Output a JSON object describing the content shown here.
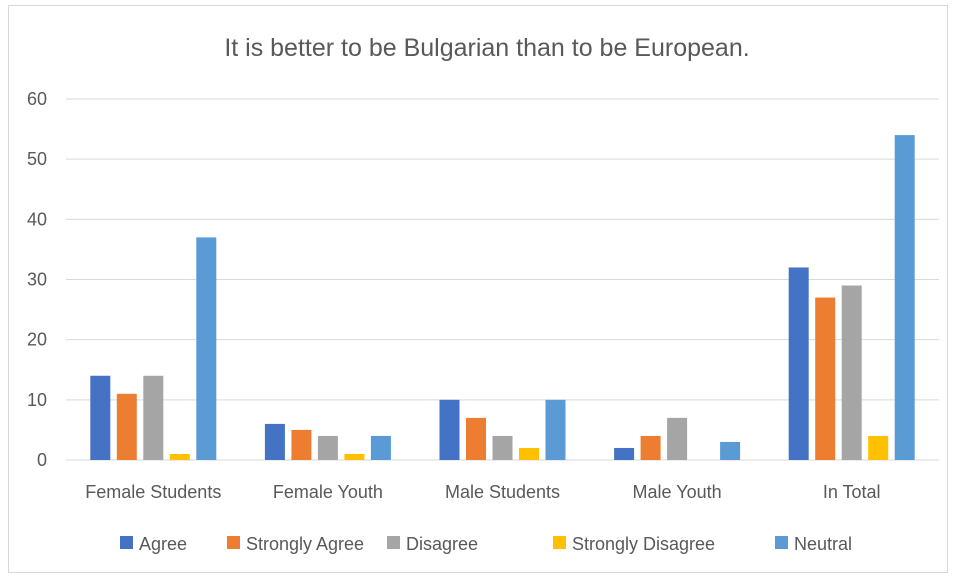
{
  "chart_data": {
    "type": "bar",
    "title": "It is better to be Bulgarian than to be European.",
    "categories": [
      "Female Students",
      "Female Youth",
      "Male Students",
      "Male Youth",
      "In Total"
    ],
    "series": [
      {
        "name": "Agree",
        "color": "#4472c4",
        "values": [
          14,
          6,
          10,
          2,
          32
        ]
      },
      {
        "name": "Strongly Agree",
        "color": "#ed7d31",
        "values": [
          11,
          5,
          7,
          4,
          27
        ]
      },
      {
        "name": "Disagree",
        "color": "#a5a5a5",
        "values": [
          14,
          4,
          4,
          7,
          29
        ]
      },
      {
        "name": "Strongly Disagree",
        "color": "#ffc000",
        "values": [
          1,
          1,
          2,
          0,
          4
        ]
      },
      {
        "name": "Neutral",
        "color": "#5b9bd5",
        "values": [
          37,
          4,
          10,
          3,
          54
        ]
      }
    ],
    "ylim": [
      0,
      60
    ],
    "yticks": [
      0,
      10,
      20,
      30,
      40,
      50,
      60
    ],
    "xlabel": "",
    "ylabel": "",
    "grid": true,
    "legend_position": "bottom"
  }
}
